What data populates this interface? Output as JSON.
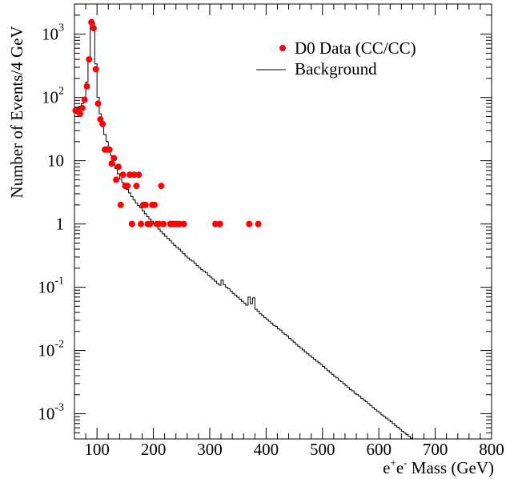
{
  "chart_data": {
    "type": "scatter",
    "xlabel": {
      "base": "e",
      "sup1": "+",
      "mid": "e",
      "sup2": "-",
      "rest": " Mass (GeV)"
    },
    "ylabel": "Number of Events/4 GeV",
    "xlim": [
      60,
      800
    ],
    "ylim": [
      0.0004,
      3000
    ],
    "yscale": "log",
    "x_ticks": [
      {
        "v": 100,
        "label": "100"
      },
      {
        "v": 200,
        "label": "200"
      },
      {
        "v": 300,
        "label": "300"
      },
      {
        "v": 400,
        "label": "400"
      },
      {
        "v": 500,
        "label": "500"
      },
      {
        "v": 600,
        "label": "600"
      },
      {
        "v": 700,
        "label": "700"
      },
      {
        "v": 800,
        "label": "800"
      }
    ],
    "y_ticks": [
      {
        "v": 1000,
        "base": "10",
        "exp": "3"
      },
      {
        "v": 100,
        "base": "10",
        "exp": "2"
      },
      {
        "v": 10,
        "base": "10",
        "exp": ""
      },
      {
        "v": 1,
        "base": "1",
        "exp": ""
      },
      {
        "v": 0.1,
        "base": "10",
        "exp": "-1"
      },
      {
        "v": 0.01,
        "base": "10",
        "exp": "-2"
      },
      {
        "v": 0.001,
        "base": "10",
        "exp": "-3"
      }
    ],
    "legend": {
      "position": "top-right",
      "data_label": "D0 Data (CC/CC)",
      "background_label": "Background"
    },
    "series": [
      {
        "name": "D0 Data (CC/CC)",
        "style": "marker",
        "color": "#ff0000",
        "points": [
          [
            62,
            62
          ],
          [
            66,
            60
          ],
          [
            70,
            55
          ],
          [
            74,
            68
          ],
          [
            78,
            92
          ],
          [
            82,
            150
          ],
          [
            86,
            400
          ],
          [
            90,
            1550
          ],
          [
            94,
            1250
          ],
          [
            98,
            280
          ],
          [
            102,
            80
          ],
          [
            106,
            45
          ],
          [
            110,
            38
          ],
          [
            114,
            15
          ],
          [
            118,
            15
          ],
          [
            122,
            15
          ],
          [
            126,
            9
          ],
          [
            130,
            11
          ],
          [
            134,
            5
          ],
          [
            138,
            8
          ],
          [
            142,
            2
          ],
          [
            146,
            6
          ],
          [
            150,
            4
          ],
          [
            154,
            4
          ],
          [
            158,
            6
          ],
          [
            162,
            1
          ],
          [
            166,
            6
          ],
          [
            170,
            4
          ],
          [
            174,
            6
          ],
          [
            178,
            1
          ],
          [
            182,
            2
          ],
          [
            186,
            2
          ],
          [
            190,
            1
          ],
          [
            194,
            1
          ],
          [
            198,
            2
          ],
          [
            202,
            2
          ],
          [
            206,
            1
          ],
          [
            210,
            1
          ],
          [
            214,
            4
          ],
          [
            218,
            1
          ],
          [
            230,
            1
          ],
          [
            234,
            1
          ],
          [
            238,
            1
          ],
          [
            242,
            1
          ],
          [
            246,
            1
          ],
          [
            254,
            1
          ],
          [
            310,
            1
          ],
          [
            318,
            1
          ],
          [
            370,
            1
          ],
          [
            386,
            1
          ]
        ]
      },
      {
        "name": "Background",
        "style": "step",
        "color": "#000000",
        "step_width": 4,
        "points": [
          [
            60,
            70
          ],
          [
            64,
            68
          ],
          [
            68,
            72
          ],
          [
            72,
            80
          ],
          [
            76,
            100
          ],
          [
            80,
            175
          ],
          [
            84,
            420
          ],
          [
            88,
            1500
          ],
          [
            92,
            1500
          ],
          [
            96,
            340
          ],
          [
            100,
            100
          ],
          [
            104,
            55
          ],
          [
            108,
            37
          ],
          [
            112,
            26
          ],
          [
            116,
            20
          ],
          [
            120,
            15
          ],
          [
            124,
            12
          ],
          [
            128,
            9
          ],
          [
            132,
            7.5
          ],
          [
            136,
            6.2
          ],
          [
            140,
            5.2
          ],
          [
            144,
            4.5
          ],
          [
            148,
            4
          ],
          [
            152,
            3.5
          ],
          [
            156,
            3.1
          ],
          [
            160,
            2.7
          ],
          [
            164,
            2.4
          ],
          [
            168,
            2.15
          ],
          [
            172,
            1.95
          ],
          [
            176,
            1.8
          ],
          [
            180,
            1.62
          ],
          [
            184,
            1.45
          ],
          [
            188,
            1.3
          ],
          [
            192,
            1.2
          ],
          [
            196,
            1.1
          ],
          [
            200,
            1.0
          ],
          [
            204,
            0.92
          ],
          [
            208,
            0.83
          ],
          [
            212,
            0.76
          ],
          [
            216,
            0.7
          ],
          [
            220,
            0.64
          ],
          [
            224,
            0.59
          ],
          [
            228,
            0.55
          ],
          [
            232,
            0.5
          ],
          [
            236,
            0.46
          ],
          [
            240,
            0.43
          ],
          [
            244,
            0.4
          ],
          [
            248,
            0.37
          ],
          [
            252,
            0.34
          ],
          [
            256,
            0.31
          ],
          [
            260,
            0.29
          ],
          [
            264,
            0.27
          ],
          [
            268,
            0.26
          ],
          [
            272,
            0.24
          ],
          [
            276,
            0.22
          ],
          [
            280,
            0.205
          ],
          [
            284,
            0.19
          ],
          [
            288,
            0.18
          ],
          [
            292,
            0.17
          ],
          [
            296,
            0.155
          ],
          [
            300,
            0.145
          ],
          [
            304,
            0.135
          ],
          [
            308,
            0.125
          ],
          [
            312,
            0.115
          ],
          [
            316,
            0.108
          ],
          [
            320,
            0.13
          ],
          [
            324,
            0.11
          ],
          [
            328,
            0.1
          ],
          [
            332,
            0.095
          ],
          [
            336,
            0.087
          ],
          [
            340,
            0.08
          ],
          [
            344,
            0.075
          ],
          [
            348,
            0.07
          ],
          [
            352,
            0.065
          ],
          [
            356,
            0.06
          ],
          [
            360,
            0.056
          ],
          [
            364,
            0.052
          ],
          [
            368,
            0.07
          ],
          [
            372,
            0.055
          ],
          [
            376,
            0.068
          ],
          [
            380,
            0.045
          ],
          [
            384,
            0.042
          ],
          [
            388,
            0.038
          ],
          [
            392,
            0.036
          ],
          [
            396,
            0.033
          ],
          [
            400,
            0.031
          ],
          [
            404,
            0.029
          ],
          [
            408,
            0.027
          ],
          [
            412,
            0.025
          ],
          [
            416,
            0.024
          ],
          [
            420,
            0.022
          ],
          [
            424,
            0.021
          ],
          [
            428,
            0.019
          ],
          [
            432,
            0.018
          ],
          [
            436,
            0.017
          ],
          [
            440,
            0.0155
          ],
          [
            444,
            0.0145
          ],
          [
            448,
            0.0135
          ],
          [
            452,
            0.0125
          ],
          [
            456,
            0.0117
          ],
          [
            460,
            0.011
          ],
          [
            464,
            0.0102
          ],
          [
            468,
            0.0095
          ],
          [
            472,
            0.0089
          ],
          [
            476,
            0.0083
          ],
          [
            480,
            0.0078
          ],
          [
            484,
            0.0073
          ],
          [
            488,
            0.0068
          ],
          [
            492,
            0.0064
          ],
          [
            496,
            0.006
          ],
          [
            500,
            0.0056
          ],
          [
            504,
            0.0052
          ],
          [
            508,
            0.0048
          ],
          [
            512,
            0.0045
          ],
          [
            516,
            0.0042
          ],
          [
            520,
            0.0039
          ],
          [
            524,
            0.0037
          ],
          [
            528,
            0.0034
          ],
          [
            532,
            0.0032
          ],
          [
            536,
            0.003
          ],
          [
            540,
            0.0028
          ],
          [
            544,
            0.0026
          ],
          [
            548,
            0.0024
          ],
          [
            552,
            0.0023
          ],
          [
            556,
            0.0021
          ],
          [
            560,
            0.002
          ],
          [
            564,
            0.0019
          ],
          [
            568,
            0.00175
          ],
          [
            572,
            0.00165
          ],
          [
            576,
            0.00155
          ],
          [
            580,
            0.00145
          ],
          [
            584,
            0.00135
          ],
          [
            588,
            0.00125
          ],
          [
            592,
            0.00117
          ],
          [
            596,
            0.0011
          ],
          [
            600,
            0.00103
          ],
          [
            604,
            0.00096
          ],
          [
            608,
            0.0009
          ],
          [
            612,
            0.00085
          ],
          [
            616,
            0.0008
          ],
          [
            620,
            0.00075
          ],
          [
            624,
            0.0007
          ],
          [
            628,
            0.00065
          ],
          [
            632,
            0.00061
          ],
          [
            636,
            0.00057
          ],
          [
            640,
            0.00053
          ],
          [
            644,
            0.0005
          ],
          [
            648,
            0.00047
          ],
          [
            652,
            0.00044
          ],
          [
            656,
            0.00041
          ]
        ]
      }
    ]
  }
}
